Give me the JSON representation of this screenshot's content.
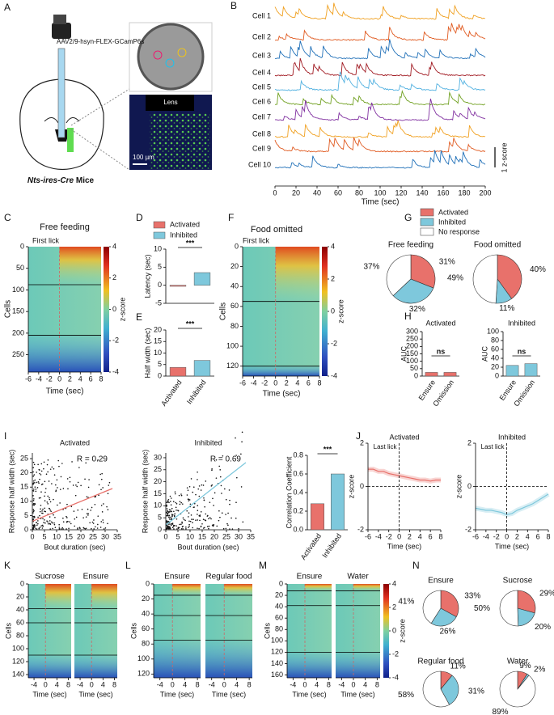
{
  "panel_labels": [
    "A",
    "B",
    "C",
    "D",
    "E",
    "F",
    "G",
    "H",
    "I",
    "J",
    "K",
    "L",
    "M",
    "N"
  ],
  "panel_a": {
    "virus": "AAV2/9-hsyn-FLEX-GCamP6s",
    "lens": "Lens",
    "scale_bar": "100 µm",
    "mouse_line": "Nts-ires-Cre",
    "mice": "Mice"
  },
  "chart_data": [
    {
      "type": "traces",
      "cells": [
        "Cell 1",
        "Cell 2",
        "Cell 3",
        "Cell 4",
        "Cell 5",
        "Cell 6",
        "Cell 7",
        "Cell 8",
        "Cell 9",
        "Cell 10"
      ],
      "colors": [
        "#f0a020",
        "#e05a20",
        "#2070b8",
        "#a01820",
        "#50b0e0",
        "#70a020",
        "#8030a0",
        "#f0a020",
        "#e05a20",
        "#2070b8"
      ],
      "xlabel": "Time (sec)",
      "xlim": [
        0,
        200
      ],
      "xticks": [
        0,
        20,
        40,
        60,
        80,
        100,
        120,
        140,
        160,
        180,
        200
      ],
      "scale_label": "1 z-score"
    },
    {
      "type": "heatmap",
      "title": "Free feeding",
      "annotation": "First lick",
      "ylabel": "Cells",
      "xlabel": "Time (sec)",
      "xlim": [
        -6,
        8
      ],
      "xticks": [
        -6,
        -4,
        -2,
        0,
        2,
        4,
        6,
        8
      ],
      "ylim": [
        0,
        290
      ],
      "yticks": [
        0,
        50,
        100,
        150,
        200,
        250
      ],
      "dividers": [
        88,
        205
      ],
      "colorbar": {
        "label": "z-score",
        "lim": [
          -4,
          4
        ],
        "ticks": [
          4,
          2,
          0,
          -2,
          -4
        ]
      }
    },
    {
      "type": "bar",
      "legend": [
        "Activated",
        "Inhibited"
      ],
      "ylabel": "Latency (sec)",
      "values": [
        -0.3,
        3.5
      ],
      "colors": [
        "#e8716b",
        "#7ec8dc"
      ],
      "ylim": [
        -5,
        10
      ],
      "yticks": [
        -5,
        0,
        5,
        10
      ],
      "annotation": "***"
    },
    {
      "type": "bar",
      "ylabel": "Half width (sec)",
      "categories": [
        "Activated",
        "Inhibited"
      ],
      "values": [
        3.8,
        6.8
      ],
      "colors": [
        "#e8716b",
        "#7ec8dc"
      ],
      "ylim": [
        0,
        20
      ],
      "yticks": [
        0,
        5,
        10,
        15,
        20
      ],
      "annotation": "***"
    },
    {
      "type": "heatmap",
      "title": "Food omitted",
      "annotation": "First lick",
      "ylabel": "Cells",
      "xlabel": "Time (sec)",
      "xlim": [
        -6,
        8
      ],
      "xticks": [
        -6,
        -4,
        -2,
        0,
        2,
        4,
        6,
        8
      ],
      "ylim": [
        0,
        130
      ],
      "yticks": [
        0,
        20,
        40,
        60,
        80,
        100,
        120
      ],
      "dividers": [
        55,
        120
      ],
      "colorbar": {
        "label": "z-score",
        "lim": [
          -4,
          4
        ],
        "ticks": [
          4,
          2,
          0,
          -2,
          -4
        ]
      }
    },
    {
      "type": "pie",
      "legend": [
        "Activated",
        "Inhibited",
        "No response"
      ],
      "colors": [
        "#e8716b",
        "#7ec8dc",
        "#ffffff"
      ],
      "pies": [
        {
          "title": "Free feeding",
          "values": [
            31,
            32,
            37
          ],
          "value_labels": [
            "31%",
            "32%",
            "37%"
          ]
        },
        {
          "title": "Food omitted",
          "values": [
            40,
            11,
            49
          ],
          "value_labels": [
            "40%",
            "11%",
            "49%"
          ]
        }
      ]
    },
    {
      "type": "bar_pair",
      "ylabel": "AUC",
      "panels": [
        {
          "title": "Activated",
          "categories": [
            "Ensure",
            "Omission"
          ],
          "values": [
            25,
            25
          ],
          "colors": [
            "#e8716b",
            "#e8716b"
          ],
          "ylim": [
            0,
            300
          ],
          "yticks": [
            0,
            50,
            100,
            150,
            200,
            250,
            300
          ],
          "annotation": "ns"
        },
        {
          "title": "Inhibited",
          "categories": [
            "Ensure",
            "Omission"
          ],
          "values": [
            24,
            28
          ],
          "colors": [
            "#7ec8dc",
            "#7ec8dc"
          ],
          "ylim": [
            0,
            100
          ],
          "yticks": [
            0,
            20,
            40,
            60,
            80,
            100
          ],
          "annotation": "ns"
        }
      ]
    },
    {
      "type": "scatter_pair",
      "ylabel": "Response half width (sec)",
      "xlabel": "Bout duration (sec)",
      "panels": [
        {
          "title": "Activated",
          "annotation": "R = 0.29",
          "color": "#e8716b",
          "xlim": [
            0,
            35
          ],
          "xticks": [
            0,
            5,
            10,
            15,
            20,
            25,
            30,
            35
          ],
          "ylim": [
            0,
            27
          ],
          "yticks": [
            0,
            5,
            10,
            15,
            20,
            25
          ],
          "fit": {
            "x": [
              0,
              33
            ],
            "values": [
              3,
              14.5
            ]
          }
        },
        {
          "title": "Inhibited",
          "annotation": "R = 0.69",
          "color": "#7ec8dc",
          "xlim": [
            0,
            35
          ],
          "xticks": [
            0,
            5,
            10,
            15,
            20,
            25,
            30,
            35
          ],
          "ylim": [
            0,
            32
          ],
          "yticks": [
            0,
            5,
            10,
            15,
            20,
            25,
            30
          ],
          "fit": {
            "x": [
              0,
              33
            ],
            "values": [
              2,
              28
            ]
          }
        }
      ]
    },
    {
      "type": "bar",
      "ylabel": "Correlation Coefficient",
      "categories": [
        "Activated",
        "Inhibited"
      ],
      "values": [
        0.28,
        0.6
      ],
      "colors": [
        "#e8716b",
        "#7ec8dc"
      ],
      "ylim": [
        0,
        0.8
      ],
      "yticks": [
        {
          "value": 0,
          "label": "0.0"
        },
        0.2,
        0.4,
        0.6,
        0.8
      ],
      "annotation": "***"
    },
    {
      "type": "line_pair",
      "ylabel": "z-score",
      "xlabel": "Time (sec)",
      "annotation": "Last lick",
      "xlim": [
        -6,
        8
      ],
      "xticks": [
        -6,
        -4,
        -2,
        0,
        2,
        4,
        6,
        8
      ],
      "ylim": [
        -2,
        2
      ],
      "yticks": [
        -2,
        0,
        2
      ],
      "x": [
        -6,
        -5,
        -4,
        -3,
        -2,
        -1,
        0,
        1,
        2,
        3,
        4,
        5,
        6,
        7,
        8
      ],
      "panels": [
        {
          "title": "Activated",
          "color": "#e8716b",
          "values": [
            0.8,
            0.8,
            0.7,
            0.7,
            0.6,
            0.55,
            0.5,
            0.45,
            0.4,
            0.35,
            0.3,
            0.3,
            0.25,
            0.3,
            0.3
          ]
        },
        {
          "title": "Inhibited",
          "color": "#7ec8dc",
          "values": [
            -1.0,
            -1.05,
            -1.1,
            -1.1,
            -1.15,
            -1.2,
            -1.3,
            -1.25,
            -1.1,
            -1.0,
            -0.9,
            -0.8,
            -0.65,
            -0.5,
            -0.35
          ]
        }
      ]
    },
    {
      "type": "heatmap_pair",
      "titles": [
        "Sucrose",
        "Ensure"
      ],
      "ylabel": "Cells",
      "xlabel": "Time (sec)",
      "xlim": [
        -6,
        9
      ],
      "xticks": [
        -4,
        0,
        4,
        8
      ],
      "ylim": [
        0,
        145
      ],
      "yticks": [
        0,
        20,
        40,
        60,
        80,
        100,
        120,
        140
      ],
      "dividers": [
        38,
        60,
        110
      ]
    },
    {
      "type": "heatmap_pair",
      "titles": [
        "Ensure",
        "Regular food"
      ],
      "ylabel": "Cells",
      "xlabel": "Time (sec)",
      "xlim": [
        -6,
        9
      ],
      "xticks": [
        -4,
        0,
        4,
        8
      ],
      "ylim": [
        0,
        125
      ],
      "yticks": [
        0,
        20,
        40,
        60,
        80,
        100,
        120
      ],
      "dividers": [
        15,
        42,
        75
      ]
    },
    {
      "type": "heatmap_pair",
      "titles": [
        "Ensure",
        "Water"
      ],
      "ylabel": "Cells",
      "xlabel": "Time (sec)",
      "xlim": [
        -6,
        9
      ],
      "xticks": [
        -4,
        0,
        4,
        8
      ],
      "ylim": [
        0,
        165
      ],
      "yticks": [
        0,
        20,
        40,
        60,
        80,
        100,
        120,
        140,
        160
      ],
      "dividers": [
        12,
        38,
        120
      ],
      "colorbar": {
        "label": "z-score",
        "lim": [
          -4,
          4
        ],
        "ticks": [
          4,
          2,
          0,
          -2,
          -4
        ]
      }
    },
    {
      "type": "pie",
      "colors": [
        "#e8716b",
        "#7ec8dc",
        "#ffffff"
      ],
      "pies": [
        {
          "title": "Ensure",
          "values": [
            33,
            26,
            41
          ],
          "value_labels": [
            "33%",
            "26%",
            "41%"
          ]
        },
        {
          "title": "Sucrose",
          "values": [
            29,
            20,
            50
          ],
          "value_labels": [
            "29%",
            "20%",
            "50%"
          ]
        },
        {
          "title": "Regular food",
          "values": [
            11,
            31,
            58
          ],
          "value_labels": [
            "11%",
            "31%",
            "58%"
          ]
        },
        {
          "title": "Water",
          "values": [
            9,
            2,
            89
          ],
          "value_labels": [
            "9%",
            "2%",
            "89%"
          ]
        }
      ]
    }
  ]
}
